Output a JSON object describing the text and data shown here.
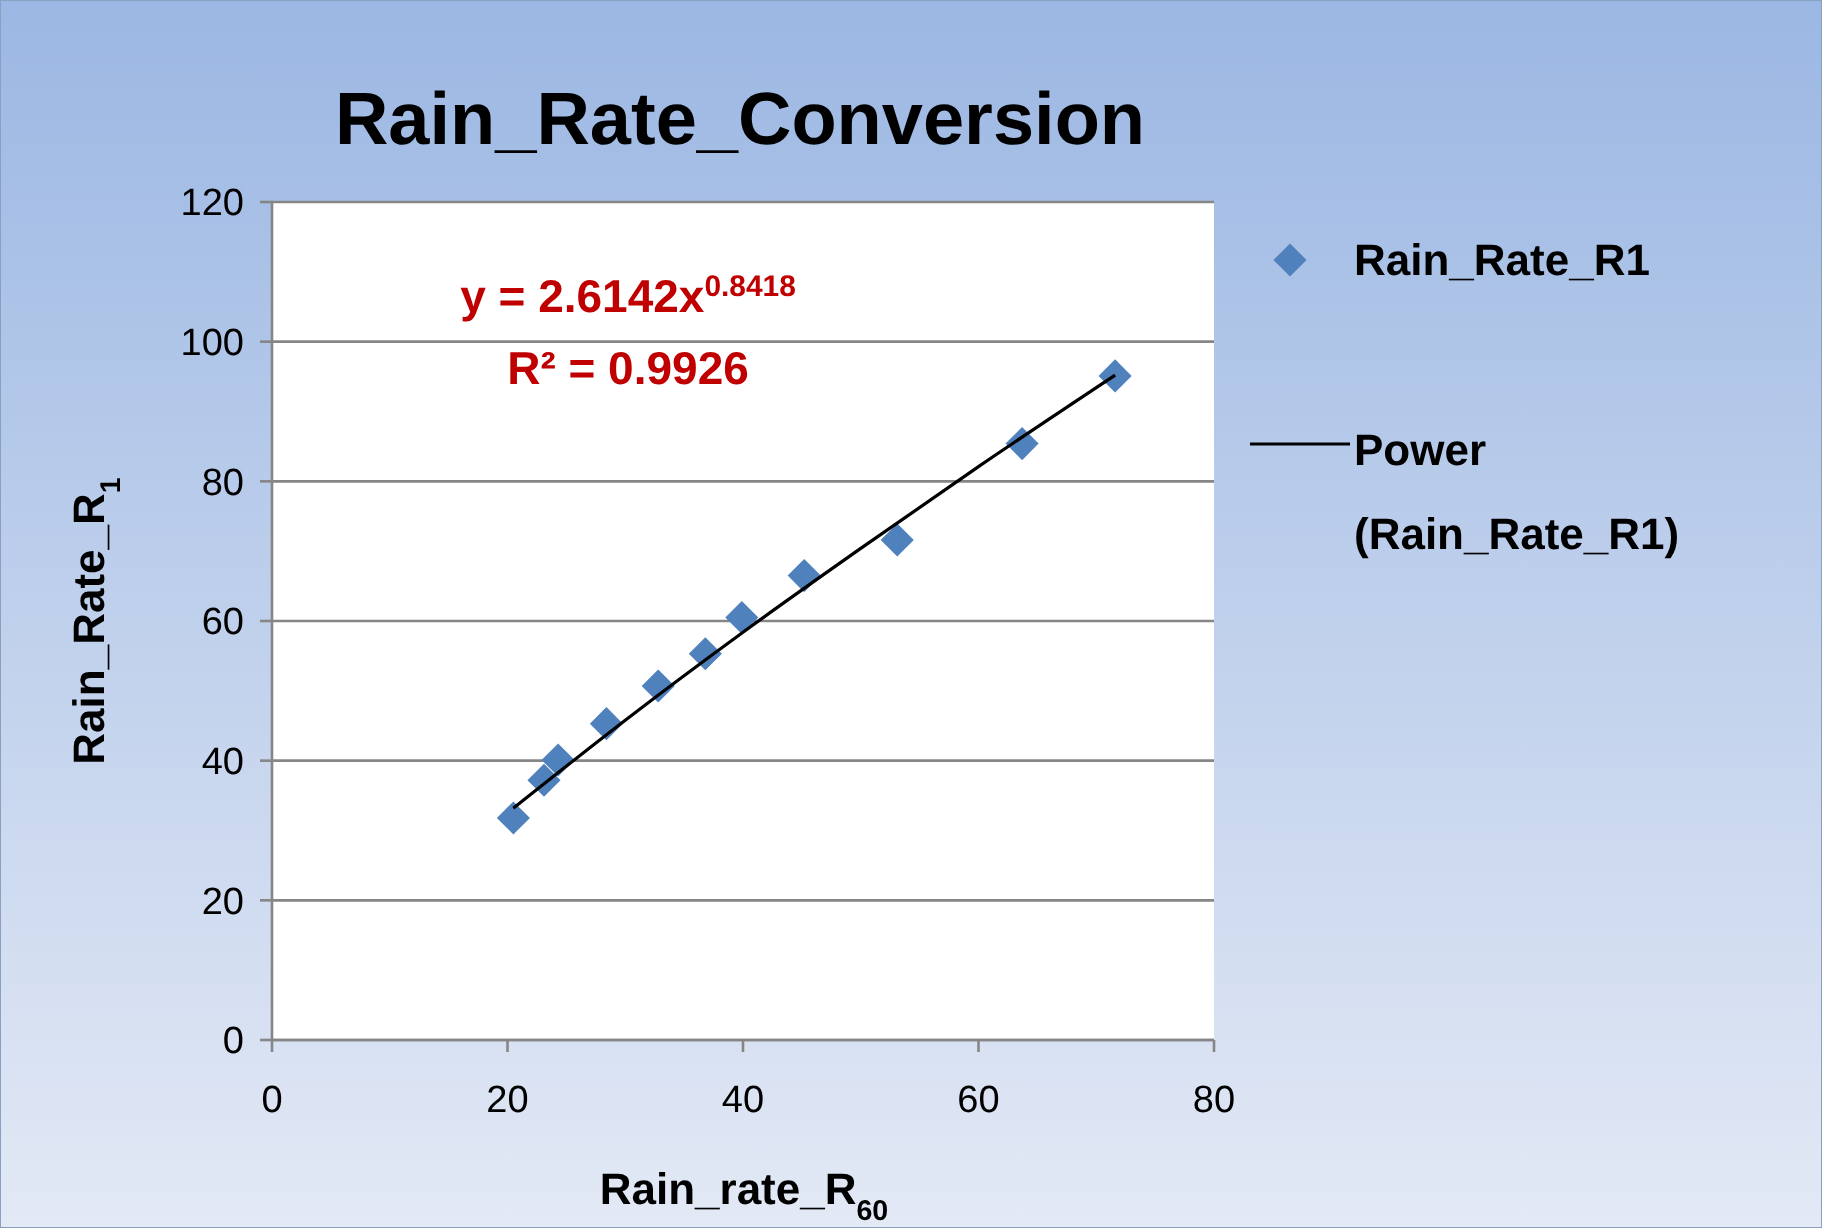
{
  "chart_data": {
    "type": "scatter",
    "title": "Rain_Rate_Conversion",
    "xlabel": "Rain_rate_R$_{60}$",
    "ylabel": "Rain_Rate_R$_{1}$",
    "series": [
      {
        "name": "Rain_Rate_R1",
        "color": "#4f81bd",
        "marker": "diamond",
        "x": [
          20.5,
          23.1,
          24.3,
          28.4,
          32.8,
          36.8,
          39.9,
          45.2,
          53.1,
          63.7,
          71.6
        ],
        "values": [
          31.8,
          37.2,
          40.1,
          45.3,
          50.7,
          55.3,
          60.5,
          66.5,
          71.6,
          85.4,
          95.1
        ]
      },
      {
        "name": "Power (Rain_Rate_R1)",
        "type": "line",
        "color": "#000000",
        "line_style": "solid",
        "x": [
          20.5,
          30,
          40,
          50,
          60,
          71.6
        ],
        "values": [
          33.2,
          45.8,
          58.4,
          70.4,
          82.1,
          95.2
        ]
      }
    ],
    "annotations": [
      "y = 2.6142x$^{0.8418}$",
      "R² = 0.9926"
    ],
    "xlim": [
      0,
      80
    ],
    "xticks": [
      0,
      20,
      40,
      60,
      80
    ],
    "ylim": [
      0,
      120
    ],
    "yticks": [
      0,
      20,
      40,
      60,
      80,
      100,
      120
    ],
    "grid": "y",
    "legend": "right"
  }
}
